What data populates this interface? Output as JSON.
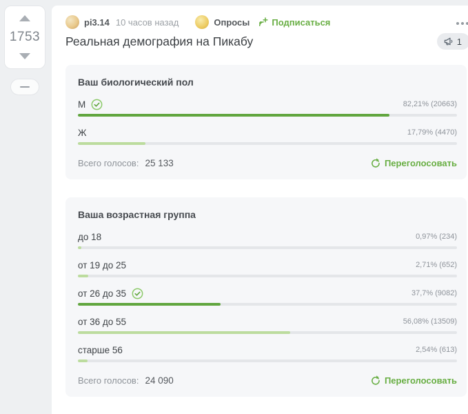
{
  "colors": {
    "green": "#68ae43",
    "bar_selected": "#61a63f",
    "bar_unselected": "#bcdc9e",
    "check_ring": "#8bc968"
  },
  "icons": {
    "upvote": "triangle-up",
    "downvote": "triangle-down",
    "collapse": "minus",
    "subscribe": "broadcast-plus",
    "ad_counter": "megaphone",
    "revote": "refresh-circle",
    "selected_option": "check-circle",
    "more_options": "ellipsis"
  },
  "sidebar": {
    "rating": "1753"
  },
  "post": {
    "author": "pi3.14",
    "time": "10 часов назад",
    "community": "Опросы",
    "subscribe_label": "Подписаться",
    "title": "Реальная демография на Пикабу",
    "ad_count": "1"
  },
  "polls": [
    {
      "question": "Ваш биологический пол",
      "total_label": "Всего голосов:",
      "total": "25 133",
      "revote_label": "Переголосовать",
      "options": [
        {
          "label": "М",
          "selected": true,
          "percent": 82.21,
          "stat": "82,21% (20663)"
        },
        {
          "label": "Ж",
          "selected": false,
          "percent": 17.79,
          "stat": "17,79% (4470)"
        }
      ]
    },
    {
      "question": "Ваша возрастная группа",
      "total_label": "Всего голосов:",
      "total": "24 090",
      "revote_label": "Переголосовать",
      "options": [
        {
          "label": "до 18",
          "selected": false,
          "percent": 0.97,
          "stat": "0,97% (234)"
        },
        {
          "label": "от 19 до 25",
          "selected": false,
          "percent": 2.71,
          "stat": "2,71% (652)"
        },
        {
          "label": "от 26 до 35",
          "selected": true,
          "percent": 37.7,
          "stat": "37,7% (9082)"
        },
        {
          "label": "от 36 до 55",
          "selected": false,
          "percent": 56.08,
          "stat": "56,08% (13509)"
        },
        {
          "label": "старше 56",
          "selected": false,
          "percent": 2.54,
          "stat": "2,54% (613)"
        }
      ]
    }
  ]
}
